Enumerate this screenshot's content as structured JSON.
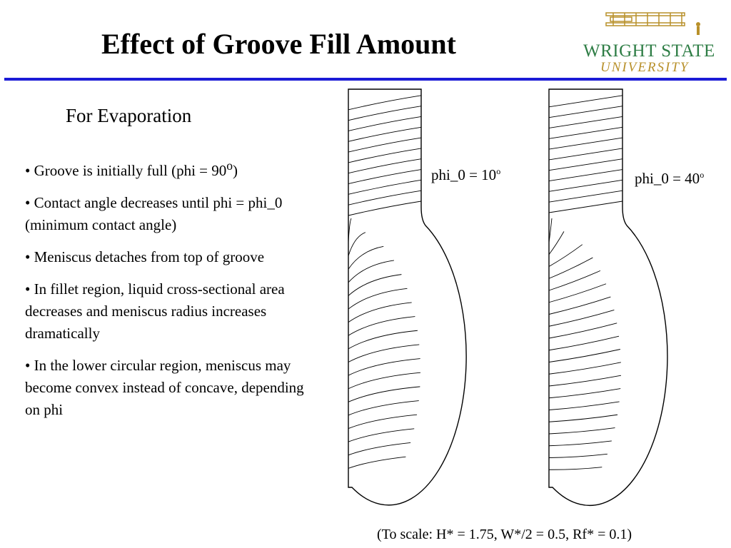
{
  "slide": {
    "title": "Effect of Groove Fill Amount",
    "subtitle": "For Evaporation",
    "logo": {
      "line1": "WRIGHT STATE",
      "line2": "UNIVERSITY"
    },
    "accent_color": "#1b1bd6",
    "bullets": [
      {
        "text": "• Groove is initially full (phi = 90",
        "sup": "o",
        "tail": ")"
      },
      {
        "text": "• Contact angle decreases until phi = phi_0 (minimum contact angle)"
      },
      {
        "text": "• Meniscus detaches from top of groove"
      },
      {
        "text": "• In fillet region, liquid cross-sectional area decreases and meniscus radius increases dramatically"
      },
      {
        "text": "• In the lower circular region, meniscus may become convex instead of concave, depending on phi"
      }
    ],
    "diagrams": [
      {
        "label": "phi_0 = 10",
        "label_sup": "o"
      },
      {
        "label": "phi_0 = 40",
        "label_sup": "o"
      }
    ],
    "caption": "(To scale: H* = 1.75, W*/2 = 0.5, Rf* = 0.1)"
  }
}
